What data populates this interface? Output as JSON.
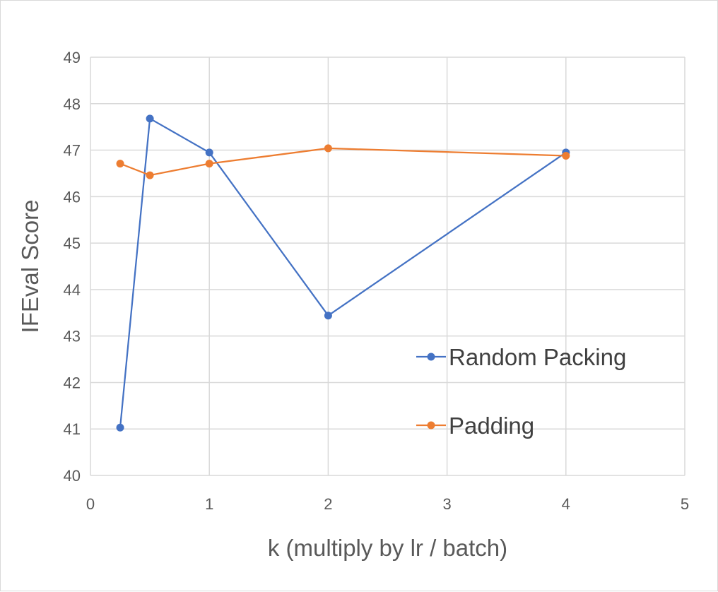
{
  "chart_data": {
    "type": "scatter",
    "title": "",
    "xlabel": "k (multiply by lr / batch)",
    "ylabel": "IFEval Score",
    "xlim": [
      0,
      5
    ],
    "ylim": [
      40,
      49
    ],
    "xticks": [
      0,
      1,
      2,
      3,
      4,
      5
    ],
    "yticks": [
      40,
      41,
      42,
      43,
      44,
      45,
      46,
      47,
      48,
      49
    ],
    "grid": true,
    "legend_position": "right",
    "series": [
      {
        "name": "Random Packing",
        "color": "#4472C4",
        "x": [
          0.25,
          0.5,
          1,
          2,
          4
        ],
        "y": [
          41.03,
          47.68,
          46.95,
          43.44,
          46.95
        ]
      },
      {
        "name": "Padding",
        "color": "#ED7D31",
        "x": [
          0.25,
          0.5,
          1,
          2,
          4
        ],
        "y": [
          46.71,
          46.46,
          46.71,
          47.04,
          46.88
        ]
      }
    ]
  }
}
